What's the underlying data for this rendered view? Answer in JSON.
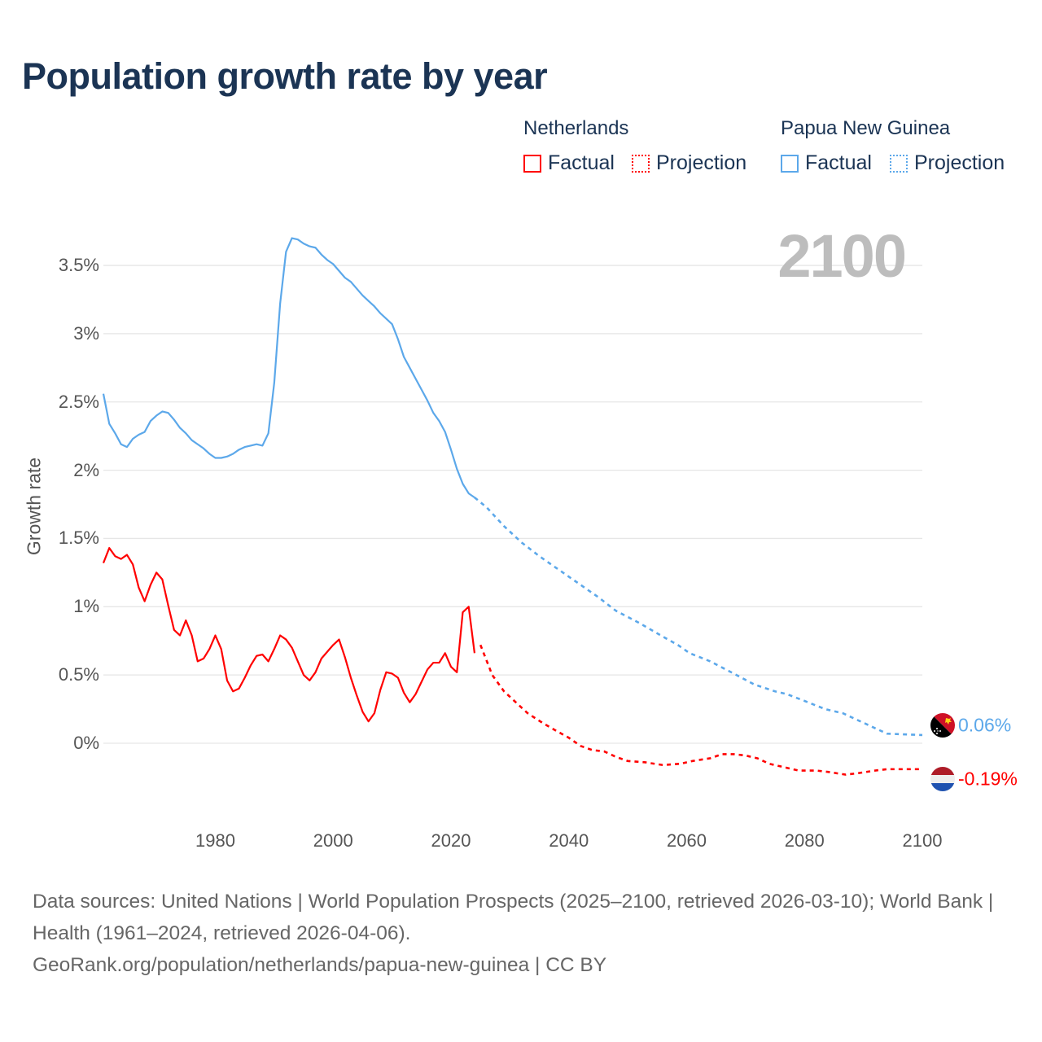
{
  "title": "Population growth rate by year",
  "legend": {
    "groups": [
      {
        "country": "Netherlands",
        "color": "#ff0000",
        "items": [
          "Factual",
          "Projection"
        ]
      },
      {
        "country": "Papua New Guinea",
        "color": "#5ca8ea",
        "items": [
          "Factual",
          "Projection"
        ]
      }
    ]
  },
  "current_year_label": "2100",
  "footer": {
    "line1": "Data sources: United Nations | World Population Prospects (2025–2100, retrieved 2026-03-10); World Bank | Health (1961–2024, retrieved 2026-04-06).",
    "line2": "GeoRank.org/population/netherlands/papua-new-guinea | CC BY"
  },
  "chart_data": {
    "type": "line",
    "title": "Population growth rate by year",
    "xlabel": "",
    "ylabel": "Growth rate",
    "xlim": [
      1961,
      2100
    ],
    "ylim": [
      -0.5,
      3.8
    ],
    "grid": true,
    "x_ticks": [
      "1980",
      "2000",
      "2020",
      "2040",
      "2060",
      "2080",
      "2100"
    ],
    "y_ticks": [
      "3.5%",
      "3%",
      "2.5%",
      "2%",
      "1.5%",
      "1%",
      "0.5%",
      "0%"
    ],
    "y_tick_values": [
      3.5,
      3,
      2.5,
      2,
      1.5,
      1,
      0.5,
      0
    ],
    "legend_position": "top-right",
    "series": [
      {
        "name": "Netherlands",
        "color": "#ff0000",
        "end_label": "-0.19%",
        "factual": {
          "start_year": 1961,
          "values": [
            1.32,
            1.43,
            1.37,
            1.35,
            1.38,
            1.31,
            1.14,
            1.04,
            1.16,
            1.25,
            1.2,
            1.01,
            0.83,
            0.79,
            0.9,
            0.79,
            0.6,
            0.62,
            0.69,
            0.79,
            0.69,
            0.46,
            0.38,
            0.4,
            0.48,
            0.57,
            0.64,
            0.65,
            0.6,
            0.69,
            0.79,
            0.76,
            0.7,
            0.6,
            0.5,
            0.46,
            0.52,
            0.62,
            0.67,
            0.72,
            0.76,
            0.63,
            0.48,
            0.35,
            0.23,
            0.16,
            0.22,
            0.39,
            0.52,
            0.51,
            0.48,
            0.37,
            0.3,
            0.36,
            0.45,
            0.54,
            0.59,
            0.59,
            0.66,
            0.56,
            0.52,
            0.96,
            1.0,
            0.66
          ]
        },
        "projection": [
          [
            2025,
            0.72
          ],
          [
            2027,
            0.5
          ],
          [
            2029,
            0.38
          ],
          [
            2031,
            0.3
          ],
          [
            2033,
            0.22
          ],
          [
            2035.5,
            0.15
          ],
          [
            2037.5,
            0.1
          ],
          [
            2040,
            0.04
          ],
          [
            2042,
            -0.02
          ],
          [
            2044,
            -0.05
          ],
          [
            2046,
            -0.06
          ],
          [
            2048,
            -0.1
          ],
          [
            2050,
            -0.13
          ],
          [
            2053,
            -0.14
          ],
          [
            2056,
            -0.16
          ],
          [
            2059,
            -0.15
          ],
          [
            2061,
            -0.13
          ],
          [
            2064,
            -0.11
          ],
          [
            2066,
            -0.08
          ],
          [
            2068,
            -0.08
          ],
          [
            2070,
            -0.09
          ],
          [
            2072,
            -0.11
          ],
          [
            2074,
            -0.15
          ],
          [
            2076,
            -0.17
          ],
          [
            2079,
            -0.2
          ],
          [
            2082,
            -0.2
          ],
          [
            2084,
            -0.21
          ],
          [
            2087,
            -0.23
          ],
          [
            2089,
            -0.22
          ],
          [
            2092,
            -0.2
          ],
          [
            2094,
            -0.19
          ],
          [
            2100,
            -0.19
          ]
        ]
      },
      {
        "name": "Papua New Guinea",
        "color": "#5ca8ea",
        "end_label": "0.06%",
        "factual": {
          "start_year": 1961,
          "values": [
            2.56,
            2.34,
            2.27,
            2.19,
            2.17,
            2.23,
            2.26,
            2.28,
            2.36,
            2.4,
            2.43,
            2.42,
            2.37,
            2.31,
            2.27,
            2.22,
            2.19,
            2.16,
            2.12,
            2.09,
            2.09,
            2.1,
            2.12,
            2.15,
            2.17,
            2.18,
            2.19,
            2.18,
            2.27,
            2.64,
            3.22,
            3.6,
            3.7,
            3.69,
            3.66,
            3.64,
            3.63,
            3.58,
            3.54,
            3.51,
            3.46,
            3.41,
            3.38,
            3.33,
            3.28,
            3.24,
            3.2,
            3.15,
            3.11,
            3.07,
            2.96,
            2.83,
            2.75,
            2.67,
            2.59,
            2.51,
            2.42,
            2.36,
            2.28,
            2.15,
            2.01,
            1.9,
            1.83,
            1.8
          ]
        },
        "projection": [
          [
            2024,
            1.8
          ],
          [
            2026,
            1.73
          ],
          [
            2029,
            1.59
          ],
          [
            2032,
            1.47
          ],
          [
            2035,
            1.37
          ],
          [
            2038,
            1.28
          ],
          [
            2042,
            1.16
          ],
          [
            2045,
            1.07
          ],
          [
            2048,
            0.97
          ],
          [
            2052,
            0.88
          ],
          [
            2056,
            0.78
          ],
          [
            2058.5,
            0.72
          ],
          [
            2060.5,
            0.66
          ],
          [
            2064,
            0.6
          ],
          [
            2068,
            0.51
          ],
          [
            2071.5,
            0.43
          ],
          [
            2075,
            0.38
          ],
          [
            2077,
            0.36
          ],
          [
            2080,
            0.31
          ],
          [
            2083.5,
            0.25
          ],
          [
            2086.5,
            0.22
          ],
          [
            2090,
            0.15
          ],
          [
            2094,
            0.07
          ],
          [
            2100,
            0.06
          ]
        ]
      }
    ]
  }
}
